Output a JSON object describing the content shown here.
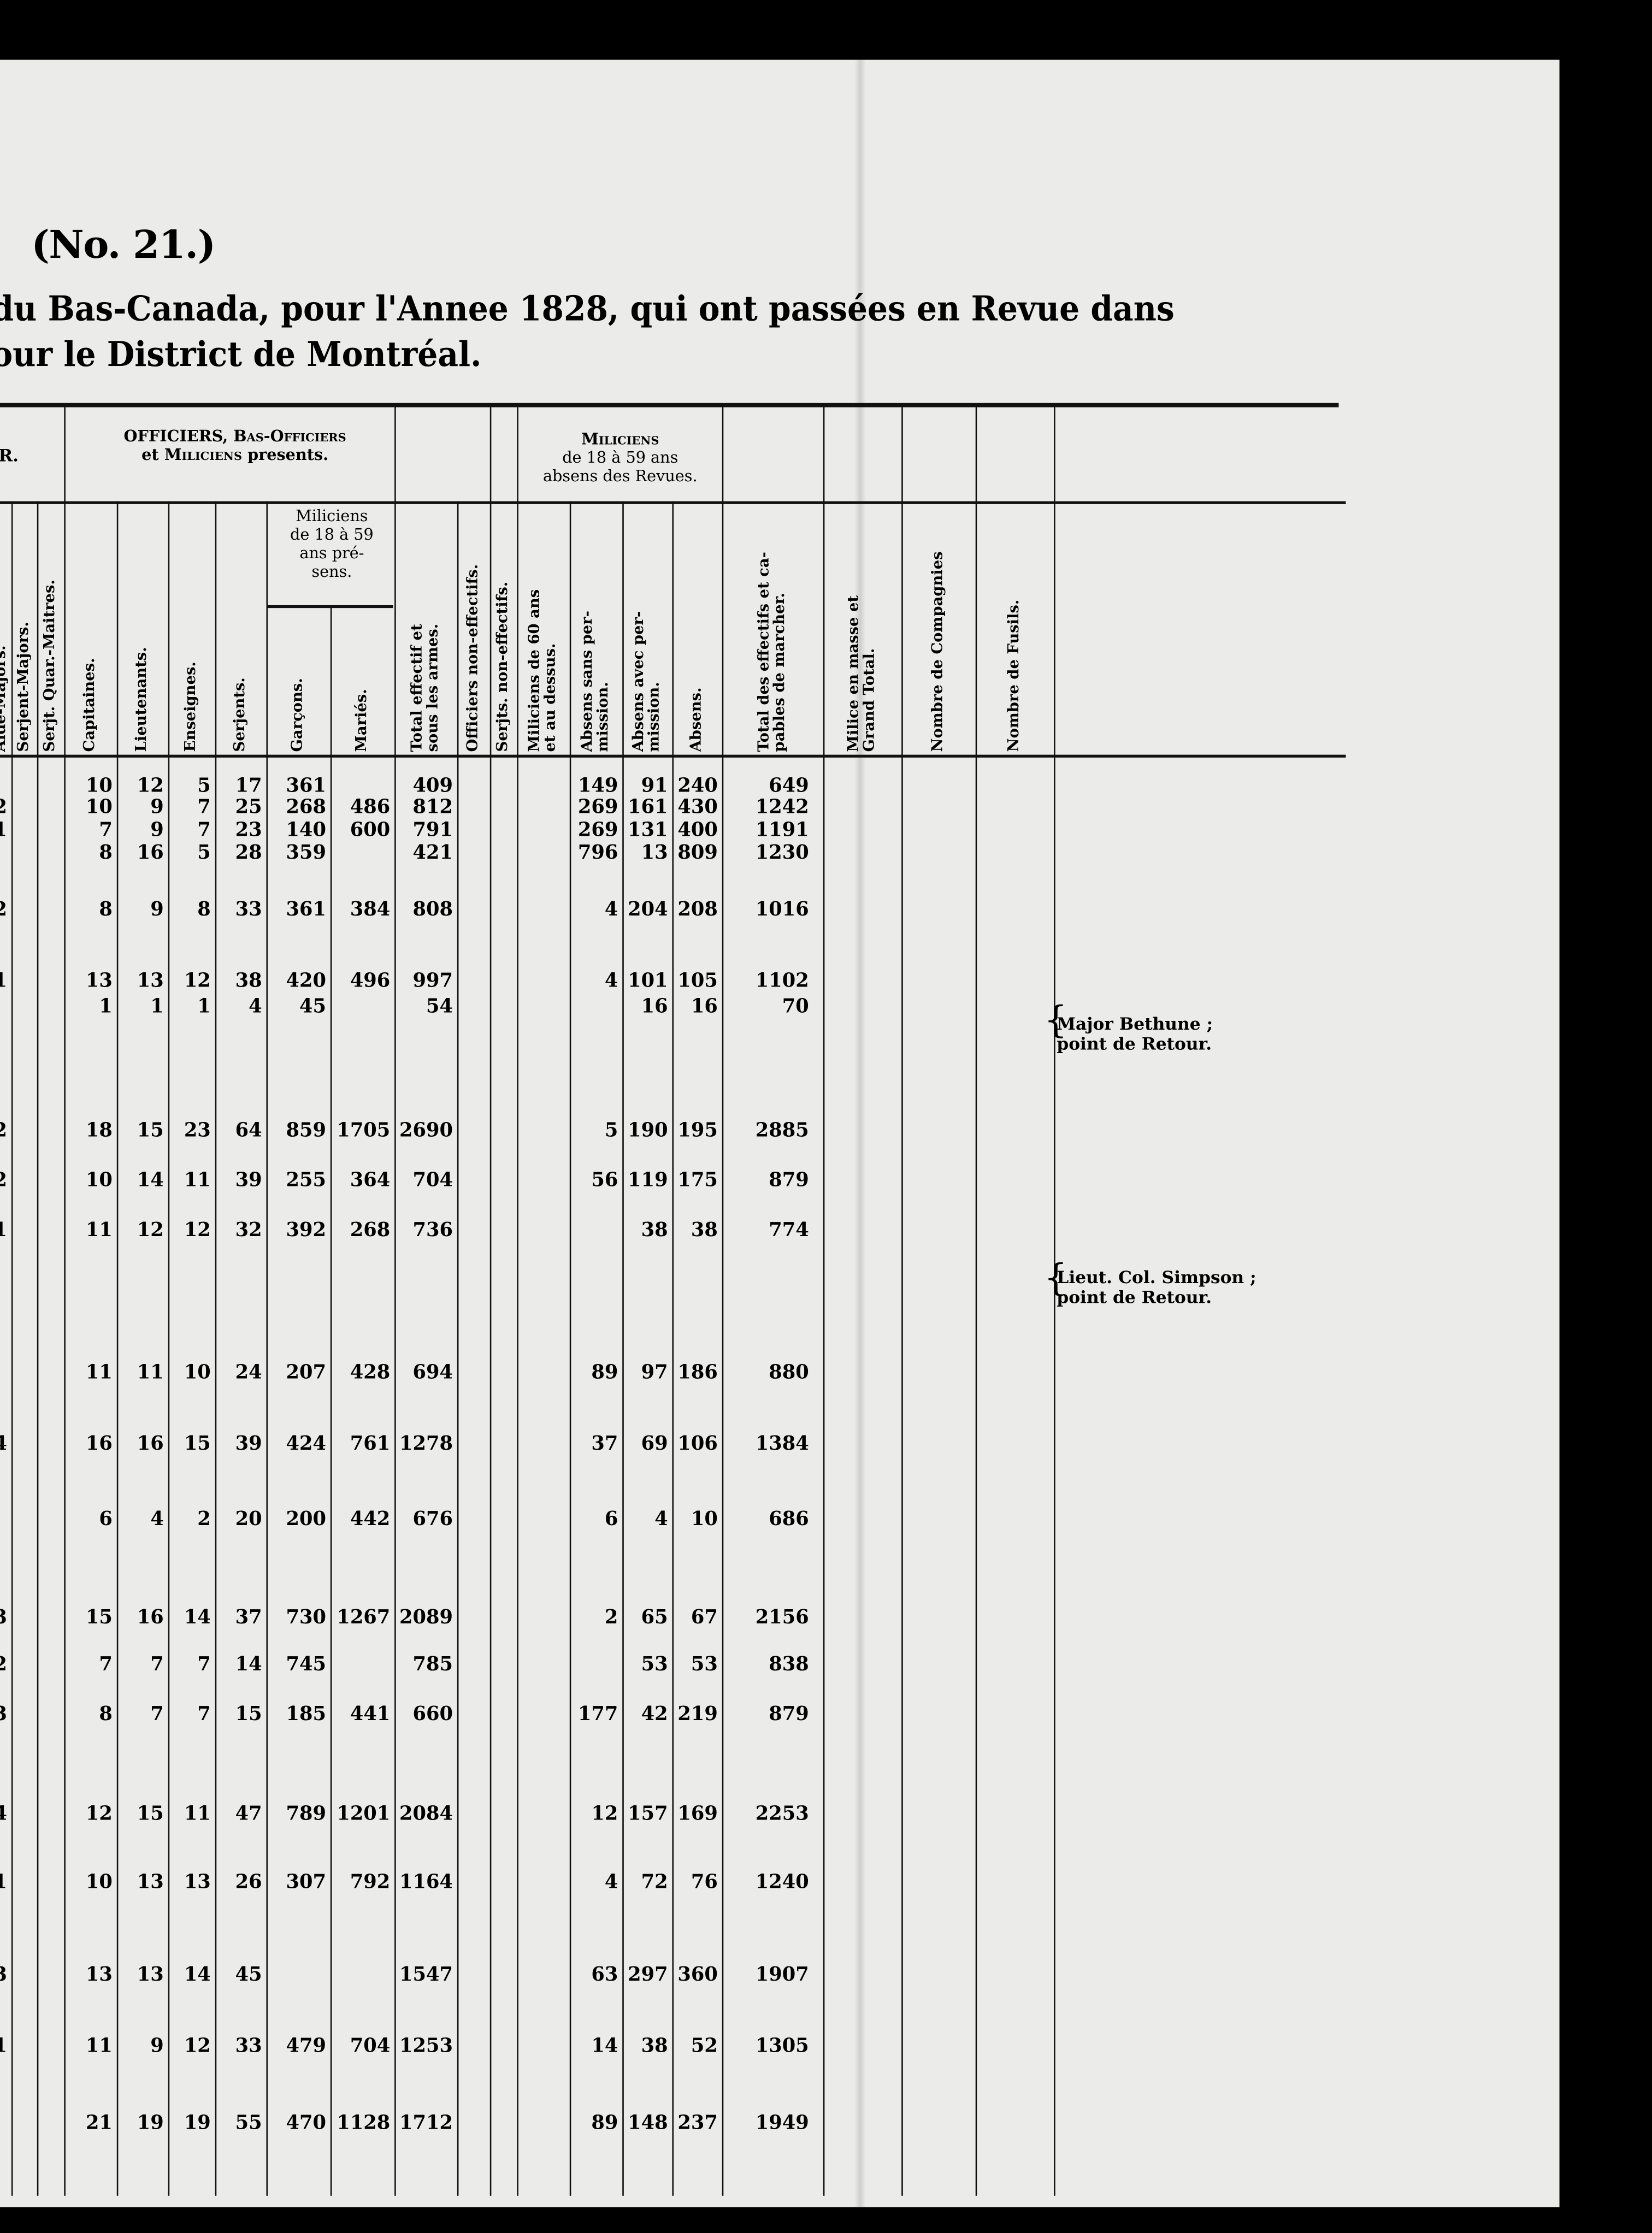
{
  "document": {
    "number": "(No. 21.)",
    "title_line_1": "du Bas-Canada, pour l'Annee 1828, qui ont passées en Revue dans",
    "title_line_2": "our le District de Montréal."
  },
  "header": {
    "partial_left_group": "R.",
    "group_present": {
      "line1_a": "OFFICIERS,",
      "line1_b": "Bas-Officiers",
      "line2_a": "et",
      "line2_b": "Miliciens",
      "line2_c": "presents."
    },
    "group_absent": {
      "line1": "Miliciens",
      "line2": "de 18 à 59 ans",
      "line3": "absens des Revues."
    },
    "sub_group_present": "Miliciens\nde 18 à 59\nans pré-\nsens.",
    "columns": {
      "aide_majors": "Aide-Majors.",
      "serjent_majors": "Serjent-Majors.",
      "serjt_quar_maitres": "Serjt. Quar.-Maitres.",
      "capitaines": "Capitaines.",
      "lieutenants": "Lieutenants.",
      "enseignes": "Enseignes.",
      "serjents": "Serjents.",
      "garcons": "Garçons.",
      "maries": "Mariés.",
      "total_effectif": "Total effectif et\nsous les armes.",
      "officiers_non_effectifs": "Officiers non-effectifs.",
      "serjts_non_effectifs": "Serjts. non-effectifs.",
      "miliciens_60": "Miliciens de 60 ans\net au dessus.",
      "absens_sans": "Absens sans per-\nmission.",
      "absens_avec": "Absens avec per-\nmission.",
      "absens": "Absens.",
      "total_capables": "Total des effectifs et ca-\npables de marcher.",
      "milice_total": "Milice en masse et\nGrand Total.",
      "nombre_compagnies": "Nombre de Compagnies",
      "nombre_fusils": "Nombre de Fusils."
    }
  },
  "rows": [
    {
      "cut": "",
      "cap": "10",
      "lieut": "12",
      "ens": "5",
      "serj": "17",
      "garc": "361",
      "mar": "",
      "tot": "409",
      "sans": "149",
      "avec": "91",
      "abs": "240",
      "totdes": "649"
    },
    {
      "cut": "2",
      "cap": "10",
      "lieut": "9",
      "ens": "7",
      "serj": "25",
      "garc": "268",
      "mar": "486",
      "tot": "812",
      "sans": "269",
      "avec": "161",
      "abs": "430",
      "totdes": "1242"
    },
    {
      "cut": "1",
      "cap": "7",
      "lieut": "9",
      "ens": "7",
      "serj": "23",
      "garc": "140",
      "mar": "600",
      "tot": "791",
      "sans": "269",
      "avec": "131",
      "abs": "400",
      "totdes": "1191"
    },
    {
      "cut": "",
      "cap": "8",
      "lieut": "16",
      "ens": "5",
      "serj": "28",
      "garc": "359",
      "mar": "",
      "tot": "421",
      "sans": "796",
      "avec": "13",
      "abs": "809",
      "totdes": "1230"
    },
    {
      "cut": "2",
      "cap": "8",
      "lieut": "9",
      "ens": "8",
      "serj": "33",
      "garc": "361",
      "mar": "384",
      "tot": "808",
      "sans": "4",
      "avec": "204",
      "abs": "208",
      "totdes": "1016"
    },
    {
      "cut": "1",
      "cap": "13",
      "lieut": "13",
      "ens": "12",
      "serj": "38",
      "garc": "420",
      "mar": "496",
      "tot": "997",
      "sans": "4",
      "avec": "101",
      "abs": "105",
      "totdes": "1102"
    },
    {
      "cut": "",
      "cap": "1",
      "lieut": "1",
      "ens": "1",
      "serj": "4",
      "garc": "45",
      "mar": "",
      "tot": "54",
      "sans": "",
      "avec": "16",
      "abs": "16",
      "totdes": "70"
    },
    {
      "cut": "2",
      "cap": "18",
      "lieut": "15",
      "ens": "23",
      "serj": "64",
      "garc": "859",
      "mar": "1705",
      "tot": "2690",
      "sans": "5",
      "avec": "190",
      "abs": "195",
      "totdes": "2885"
    },
    {
      "cut": "2",
      "cap": "10",
      "lieut": "14",
      "ens": "11",
      "serj": "39",
      "garc": "255",
      "mar": "364",
      "tot": "704",
      "sans": "56",
      "avec": "119",
      "abs": "175",
      "totdes": "879"
    },
    {
      "cut": "1",
      "cap": "11",
      "lieut": "12",
      "ens": "12",
      "serj": "32",
      "garc": "392",
      "mar": "268",
      "tot": "736",
      "sans": "",
      "avec": "38",
      "abs": "38",
      "totdes": "774"
    },
    {
      "cut": "",
      "cap": "11",
      "lieut": "11",
      "ens": "10",
      "serj": "24",
      "garc": "207",
      "mar": "428",
      "tot": "694",
      "sans": "89",
      "avec": "97",
      "abs": "186",
      "totdes": "880"
    },
    {
      "cut": "4",
      "cap": "16",
      "lieut": "16",
      "ens": "15",
      "serj": "39",
      "garc": "424",
      "mar": "761",
      "tot": "1278",
      "sans": "37",
      "avec": "69",
      "abs": "106",
      "totdes": "1384"
    },
    {
      "cut": "",
      "cap": "6",
      "lieut": "4",
      "ens": "2",
      "serj": "20",
      "garc": "200",
      "mar": "442",
      "tot": "676",
      "sans": "6",
      "avec": "4",
      "abs": "10",
      "totdes": "686"
    },
    {
      "cut": "3",
      "cap": "15",
      "lieut": "16",
      "ens": "14",
      "serj": "37",
      "garc": "730",
      "mar": "1267",
      "tot": "2089",
      "sans": "2",
      "avec": "65",
      "abs": "67",
      "totdes": "2156"
    },
    {
      "cut": "2",
      "cap": "7",
      "lieut": "7",
      "ens": "7",
      "serj": "14",
      "garc": "745",
      "mar": "",
      "tot": "785",
      "sans": "",
      "avec": "53",
      "abs": "53",
      "totdes": "838"
    },
    {
      "cut": "3",
      "cap": "8",
      "lieut": "7",
      "ens": "7",
      "serj": "15",
      "garc": "185",
      "mar": "441",
      "tot": "660",
      "sans": "177",
      "avec": "42",
      "abs": "219",
      "totdes": "879"
    },
    {
      "cut": "4",
      "cap": "12",
      "lieut": "15",
      "ens": "11",
      "serj": "47",
      "garc": "789",
      "mar": "1201",
      "tot": "2084",
      "sans": "12",
      "avec": "157",
      "abs": "169",
      "totdes": "2253"
    },
    {
      "cut": "1",
      "cap": "10",
      "lieut": "13",
      "ens": "13",
      "serj": "26",
      "garc": "307",
      "mar": "792",
      "tot": "1164",
      "sans": "4",
      "avec": "72",
      "abs": "76",
      "totdes": "1240"
    },
    {
      "cut": "3",
      "cap": "13",
      "lieut": "13",
      "ens": "14",
      "serj": "45",
      "garc": "",
      "mar": "",
      "tot": "1547",
      "sans": "63",
      "avec": "297",
      "abs": "360",
      "totdes": "1907"
    },
    {
      "cut": "1",
      "cap": "11",
      "lieut": "9",
      "ens": "12",
      "serj": "33",
      "garc": "479",
      "mar": "704",
      "tot": "1253",
      "sans": "14",
      "avec": "38",
      "abs": "52",
      "totdes": "1305"
    },
    {
      "cut": "",
      "cap": "21",
      "lieut": "19",
      "ens": "19",
      "serj": "55",
      "garc": "470",
      "mar": "1128",
      "tot": "1712",
      "sans": "89",
      "avec": "148",
      "abs": "237",
      "totdes": "1949"
    }
  ],
  "notes": [
    {
      "text": "Major Bethune ;\n point de Retour."
    },
    {
      "text": "Lieut. Col. Simpson ;\n point de Retour."
    }
  ]
}
